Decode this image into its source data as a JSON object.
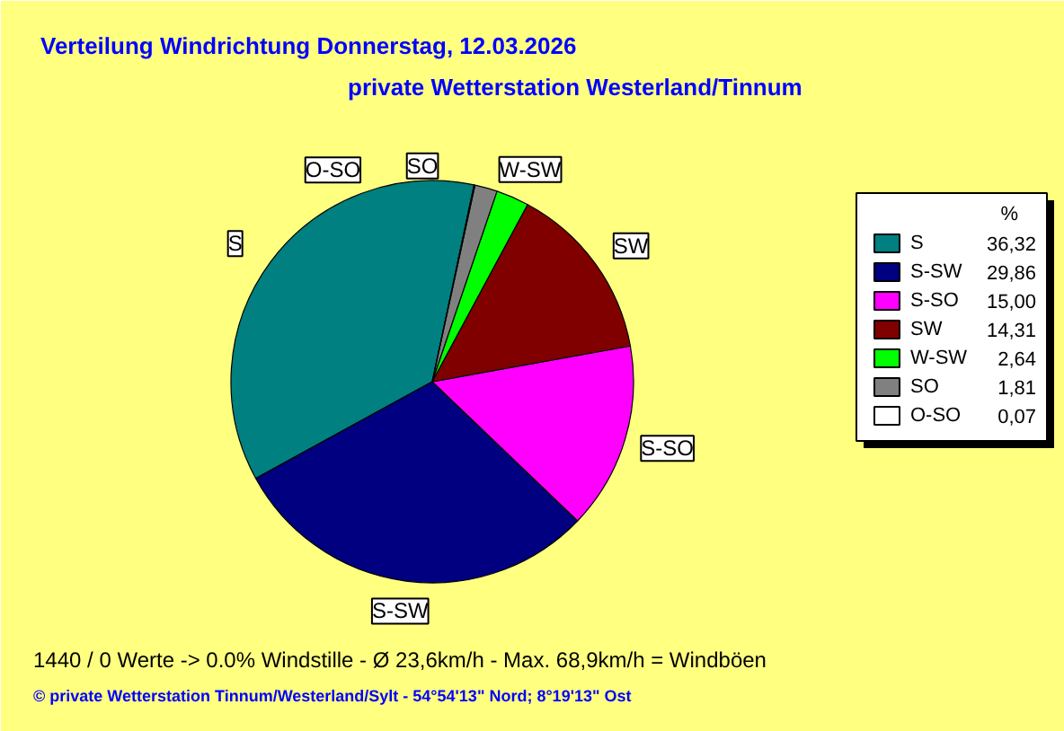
{
  "chart_data": {
    "type": "pie",
    "title": "Verteilung Windrichtung   Donnerstag, 12.03.2026",
    "subtitle": "private Wetterstation Westerland/Tinnum",
    "categories": [
      "S",
      "S-SW",
      "S-SO",
      "SW",
      "W-SW",
      "SO",
      "O-SO"
    ],
    "values": [
      36.32,
      29.86,
      15.0,
      14.31,
      2.64,
      1.81,
      0.07
    ],
    "value_labels": [
      "36,32",
      "29,86",
      "15,00",
      "14,31",
      "2,64",
      "1,81",
      "0,07"
    ],
    "colors": [
      "#008080",
      "#000080",
      "#ff00ff",
      "#800000",
      "#00ff00",
      "#808080",
      "#ffffff"
    ],
    "legend": "right",
    "legend_title": "%",
    "annotations": [
      "1440 / 0 Werte  -> 0.0% Windstille   -   Ø 23,6km/h  -  Max. 68,9km/h = Windböen",
      "© private Wetterstation Tinnum/Westerland/Sylt   -   54°54'13\" Nord; 8°19'13\" Ost"
    ]
  }
}
